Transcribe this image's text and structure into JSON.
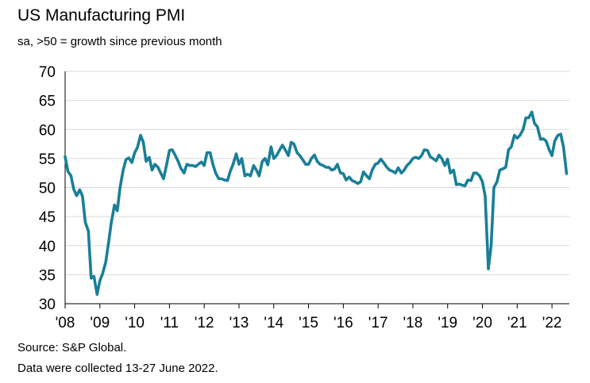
{
  "header": {
    "title": "US Manufacturing PMI",
    "subtitle": "sa, >50 = growth since previous month"
  },
  "footer": {
    "source": "Source: S&P Global.",
    "collection": "Data were collected 13-27 June 2022."
  },
  "colors": {
    "line": "#1a7f99",
    "grid": "#d9d9d9",
    "axis": "#000000"
  },
  "chart_data": {
    "type": "line",
    "title": "US Manufacturing PMI",
    "subtitle": "sa, >50 = growth since previous month",
    "xlabel": "",
    "ylabel": "",
    "ylim": [
      30,
      70
    ],
    "yticks": [
      30,
      35,
      40,
      45,
      50,
      55,
      60,
      65,
      70
    ],
    "xlim": [
      2008,
      2022.5
    ],
    "xticks": [
      {
        "year": 2008,
        "label": "'08"
      },
      {
        "year": 2009,
        "label": "'09"
      },
      {
        "year": 2010,
        "label": "'10"
      },
      {
        "year": 2011,
        "label": "'11"
      },
      {
        "year": 2012,
        "label": "'12"
      },
      {
        "year": 2013,
        "label": "'13"
      },
      {
        "year": 2014,
        "label": "'14"
      },
      {
        "year": 2015,
        "label": "'15"
      },
      {
        "year": 2016,
        "label": "'16"
      },
      {
        "year": 2017,
        "label": "'17"
      },
      {
        "year": 2018,
        "label": "'18"
      },
      {
        "year": 2019,
        "label": "'19"
      },
      {
        "year": 2020,
        "label": "'20"
      },
      {
        "year": 2021,
        "label": "'21"
      },
      {
        "year": 2022,
        "label": "'22"
      }
    ],
    "grid": "horizontal",
    "series": [
      {
        "x": [
          2008.0,
          2008.08,
          2008.17,
          2008.25,
          2008.33,
          2008.42,
          2008.5,
          2008.58,
          2008.67,
          2008.75,
          2008.83,
          2008.92,
          2009.0,
          2009.08,
          2009.17,
          2009.25,
          2009.33,
          2009.42,
          2009.5,
          2009.58,
          2009.67,
          2009.75,
          2009.83,
          2009.92,
          2010.0,
          2010.08,
          2010.17,
          2010.25,
          2010.33,
          2010.42,
          2010.5,
          2010.58,
          2010.67,
          2010.75,
          2010.83,
          2010.92,
          2011.0,
          2011.08,
          2011.17,
          2011.25,
          2011.33,
          2011.42,
          2011.5,
          2011.58,
          2011.67,
          2011.75,
          2011.83,
          2011.92,
          2012.0,
          2012.08,
          2012.17,
          2012.25,
          2012.33,
          2012.42,
          2012.5,
          2012.58,
          2012.67,
          2012.75,
          2012.83,
          2012.92,
          2013.0,
          2013.08,
          2013.17,
          2013.25,
          2013.33,
          2013.42,
          2013.5,
          2013.58,
          2013.67,
          2013.75,
          2013.83,
          2013.92,
          2014.0,
          2014.08,
          2014.17,
          2014.25,
          2014.33,
          2014.42,
          2014.5,
          2014.58,
          2014.67,
          2014.75,
          2014.83,
          2014.92,
          2015.0,
          2015.08,
          2015.17,
          2015.25,
          2015.33,
          2015.42,
          2015.5,
          2015.58,
          2015.67,
          2015.75,
          2015.83,
          2015.92,
          2016.0,
          2016.08,
          2016.17,
          2016.25,
          2016.33,
          2016.42,
          2016.5,
          2016.58,
          2016.67,
          2016.75,
          2016.83,
          2016.92,
          2017.0,
          2017.08,
          2017.17,
          2017.25,
          2017.33,
          2017.42,
          2017.5,
          2017.58,
          2017.67,
          2017.75,
          2017.83,
          2017.92,
          2018.0,
          2018.08,
          2018.17,
          2018.25,
          2018.33,
          2018.42,
          2018.5,
          2018.58,
          2018.67,
          2018.75,
          2018.83,
          2018.92,
          2019.0,
          2019.08,
          2019.17,
          2019.25,
          2019.33,
          2019.42,
          2019.5,
          2019.58,
          2019.67,
          2019.75,
          2019.83,
          2019.92,
          2020.0,
          2020.08,
          2020.17,
          2020.25,
          2020.33,
          2020.42,
          2020.5,
          2020.58,
          2020.67,
          2020.75,
          2020.83,
          2020.92,
          2021.0,
          2021.08,
          2021.17,
          2021.25,
          2021.33,
          2021.42,
          2021.5,
          2021.58,
          2021.67,
          2021.75,
          2021.83,
          2021.92,
          2022.0,
          2022.08,
          2022.17,
          2022.25,
          2022.33,
          2022.42
        ],
        "values": [
          55.3,
          52.8,
          52.0,
          49.7,
          48.6,
          49.6,
          48.5,
          44.0,
          42.5,
          34.4,
          34.7,
          31.6,
          34.0,
          35.2,
          37.2,
          40.5,
          44.0,
          47.0,
          46.0,
          50.0,
          53.0,
          54.8,
          55.1,
          54.3,
          56.0,
          56.9,
          59.0,
          57.8,
          54.5,
          55.2,
          53.0,
          54.0,
          53.5,
          52.5,
          51.5,
          54.0,
          56.4,
          56.5,
          55.5,
          54.5,
          53.3,
          52.5,
          54.0,
          53.8,
          53.8,
          53.6,
          54.0,
          54.4,
          53.8,
          56.0,
          56.0,
          54.0,
          52.5,
          51.5,
          51.5,
          51.3,
          51.2,
          52.8,
          54.0,
          55.8,
          54.0,
          55.0,
          52.0,
          52.3,
          52.0,
          53.8,
          53.0,
          52.0,
          54.5,
          55.0,
          53.9,
          57.0,
          55.0,
          55.5,
          56.5,
          57.3,
          56.5,
          55.5,
          57.8,
          57.5,
          56.0,
          55.5,
          54.8,
          54.0,
          54.0,
          55.0,
          55.6,
          54.5,
          54.0,
          53.8,
          53.5,
          53.5,
          53.0,
          53.2,
          54.0,
          52.5,
          52.4,
          51.3,
          51.8,
          51.2,
          51.0,
          50.7,
          51.0,
          52.7,
          52.0,
          51.5,
          53.0,
          54.0,
          54.2,
          54.9,
          54.2,
          53.5,
          53.0,
          52.8,
          52.5,
          53.4,
          52.5,
          53.0,
          53.8,
          54.3,
          55.0,
          55.2,
          55.0,
          55.5,
          56.5,
          56.4,
          55.3,
          55.0,
          54.6,
          55.6,
          55.0,
          53.8,
          54.9,
          52.5,
          53.0,
          50.5,
          50.6,
          50.4,
          50.3,
          51.3,
          51.2,
          52.5,
          52.5,
          52.0,
          51.0,
          48.5,
          36.0,
          40.0,
          50.0,
          51.0,
          53.0,
          53.2,
          53.5,
          56.5,
          57.0,
          59.0,
          58.5,
          59.0,
          60.0,
          62.0,
          62.0,
          63.0,
          61.0,
          60.5,
          58.3,
          58.4,
          58.0,
          56.5,
          55.5,
          58.0,
          59.0,
          59.2,
          57.0,
          52.4
        ]
      }
    ]
  }
}
